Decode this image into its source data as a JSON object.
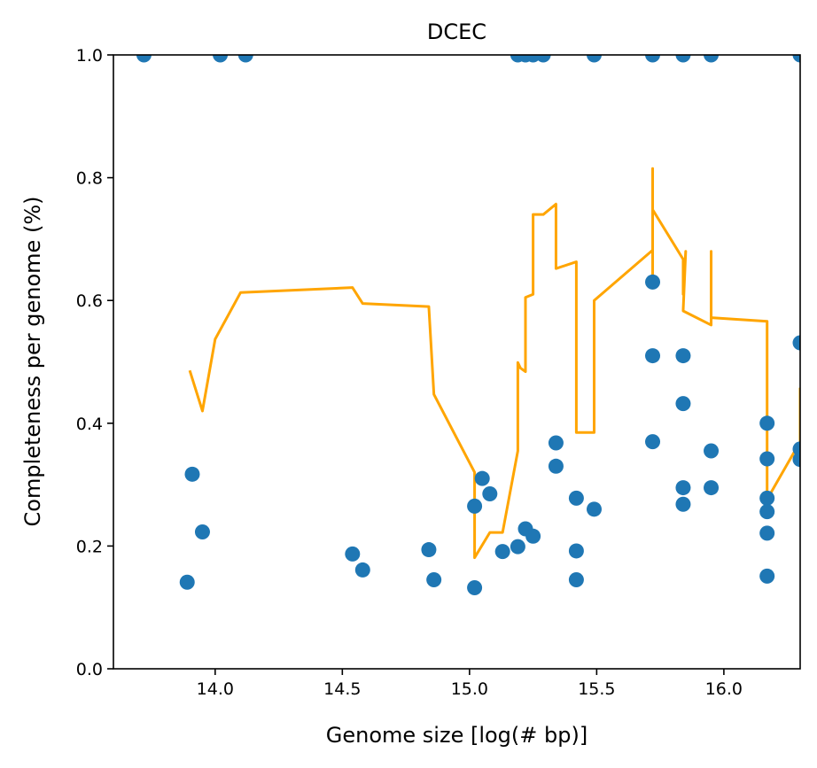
{
  "chart_data": {
    "type": "scatter",
    "title": "DCEC",
    "xlabel": "Genome size [log(# bp)]",
    "ylabel": "Completeness per genome (%)",
    "xlim": [
      13.6,
      16.3
    ],
    "ylim": [
      0.0,
      1.0
    ],
    "x_ticks": [
      "14.0",
      "14.5",
      "15.0",
      "15.5",
      "16.0"
    ],
    "x_tick_values": [
      14.0,
      14.5,
      15.0,
      15.5,
      16.0
    ],
    "y_ticks": [
      "0.0",
      "0.2",
      "0.4",
      "0.6",
      "0.8",
      "1.0"
    ],
    "y_tick_values": [
      0.0,
      0.2,
      0.4,
      0.6,
      0.8,
      1.0
    ],
    "grid": false,
    "legend": "none",
    "colors": {
      "points": "#1f77b4",
      "line": "#ffa500",
      "axes": "#000000"
    },
    "series": [
      {
        "type": "scatter",
        "x": [
          13.72,
          14.02,
          14.12,
          15.19,
          15.22,
          15.25,
          15.29,
          15.49,
          15.72,
          15.84,
          15.95,
          16.3,
          13.89,
          13.91,
          13.95,
          14.54,
          14.58,
          14.84,
          14.86,
          15.02,
          15.02,
          15.05,
          15.08,
          15.13,
          15.19,
          15.22,
          15.25,
          15.34,
          15.34,
          15.42,
          15.42,
          15.42,
          15.49,
          15.72,
          15.72,
          15.72,
          15.84,
          15.84,
          15.84,
          15.84,
          15.95,
          15.95,
          16.17,
          16.17,
          16.17,
          16.17,
          16.17,
          16.17,
          16.3,
          16.3,
          16.3
        ],
        "y": [
          1.0,
          1.0,
          1.0,
          1.0,
          1.0,
          1.0,
          1.0,
          1.0,
          1.0,
          1.0,
          1.0,
          1.0,
          0.141,
          0.317,
          0.223,
          0.187,
          0.161,
          0.194,
          0.145,
          0.132,
          0.265,
          0.31,
          0.285,
          0.191,
          0.199,
          0.228,
          0.216,
          0.368,
          0.33,
          0.278,
          0.192,
          0.145,
          0.26,
          0.63,
          0.51,
          0.37,
          0.51,
          0.432,
          0.295,
          0.268,
          0.355,
          0.295,
          0.4,
          0.342,
          0.278,
          0.256,
          0.221,
          0.151,
          0.531,
          0.358,
          0.341
        ]
      },
      {
        "type": "line",
        "x": [
          13.9,
          13.95,
          14.0,
          14.1,
          14.54,
          14.58,
          14.84,
          14.86,
          15.02,
          15.02,
          15.08,
          15.13,
          15.19,
          15.19,
          15.2,
          15.22,
          15.22,
          15.25,
          15.25,
          15.29,
          15.34,
          15.34,
          15.42,
          15.42,
          15.49,
          15.49,
          15.72,
          15.72,
          15.72,
          15.72,
          15.84,
          15.84,
          15.85,
          15.84,
          15.95,
          15.95,
          15.95,
          16.17,
          16.17,
          16.3,
          16.3
        ],
        "y": [
          0.486,
          0.42,
          0.537,
          0.613,
          0.621,
          0.595,
          0.59,
          0.447,
          0.32,
          0.181,
          0.222,
          0.222,
          0.355,
          0.499,
          0.49,
          0.484,
          0.605,
          0.61,
          0.74,
          0.74,
          0.757,
          0.652,
          0.663,
          0.385,
          0.385,
          0.6,
          0.682,
          0.62,
          0.815,
          0.748,
          0.667,
          0.61,
          0.68,
          0.583,
          0.56,
          0.68,
          0.572,
          0.566,
          0.276,
          0.37,
          0.458
        ]
      }
    ]
  }
}
